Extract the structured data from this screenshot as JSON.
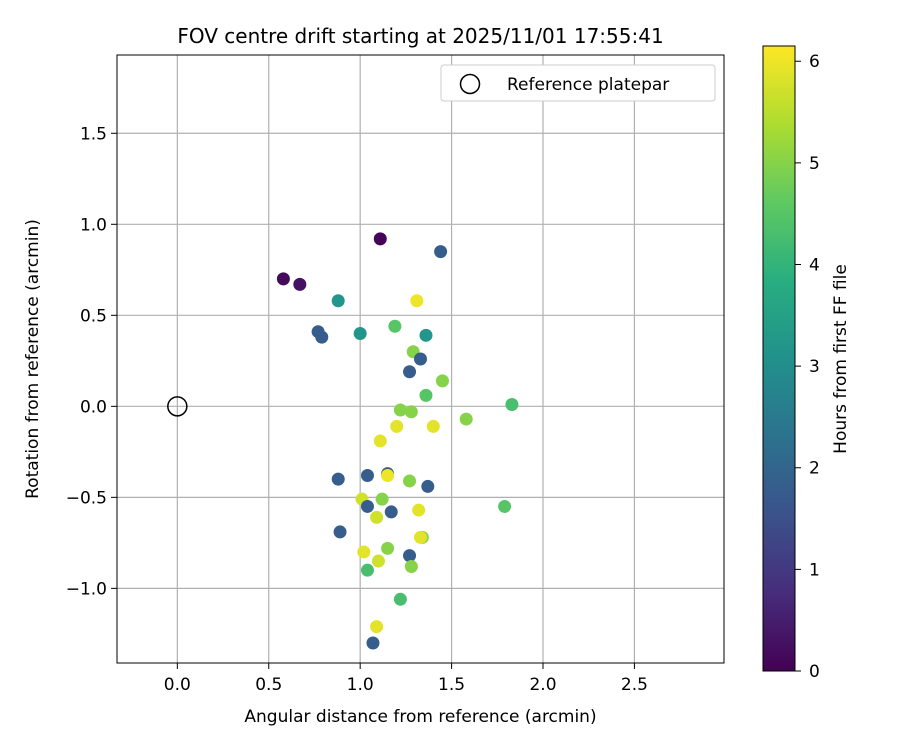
{
  "chart_data": {
    "type": "scatter",
    "title": "FOV centre drift starting at 2025/11/01 17:55:41",
    "xlabel": "Angular distance from reference (arcmin)",
    "ylabel": "Rotation from reference (arcmin)",
    "xlim": [
      -0.33,
      2.99
    ],
    "ylim": [
      -1.41,
      1.93
    ],
    "xticks": [
      0.0,
      0.5,
      1.0,
      1.5,
      2.0,
      2.5
    ],
    "xtick_labels": [
      "0.0",
      "0.5",
      "1.0",
      "1.5",
      "2.0",
      "2.5"
    ],
    "yticks": [
      -1.0,
      -0.5,
      0.0,
      0.5,
      1.0,
      1.5
    ],
    "ytick_labels": [
      "−1.0",
      "−0.5",
      "0.0",
      "0.5",
      "1.0",
      "1.5"
    ],
    "grid": true,
    "legend": {
      "position": "top-right",
      "entries": [
        {
          "label": "Reference platepar",
          "marker": "open-circle"
        }
      ]
    },
    "reference": {
      "x": 0.0,
      "y": 0.0
    },
    "colorbar": {
      "label": "Hours from first FF file",
      "colormap": "viridis",
      "range": [
        0,
        6.15
      ],
      "ticks": [
        0,
        1,
        2,
        3,
        4,
        5,
        6
      ],
      "tick_labels": [
        "0",
        "1",
        "2",
        "3",
        "4",
        "5",
        "6"
      ]
    },
    "points": [
      {
        "x": 1.11,
        "y": 0.92,
        "hours": 0.05
      },
      {
        "x": 0.58,
        "y": 0.7,
        "hours": 0.15
      },
      {
        "x": 0.67,
        "y": 0.67,
        "hours": 0.3
      },
      {
        "x": 1.44,
        "y": 0.85,
        "hours": 1.8
      },
      {
        "x": 0.77,
        "y": 0.41,
        "hours": 1.8
      },
      {
        "x": 0.79,
        "y": 0.38,
        "hours": 1.8
      },
      {
        "x": 0.88,
        "y": 0.58,
        "hours": 3.2
      },
      {
        "x": 1.0,
        "y": 0.4,
        "hours": 3.2
      },
      {
        "x": 1.36,
        "y": 0.39,
        "hours": 3.2
      },
      {
        "x": 1.19,
        "y": 0.44,
        "hours": 4.5
      },
      {
        "x": 1.31,
        "y": 0.58,
        "hours": 6.0
      },
      {
        "x": 1.29,
        "y": 0.3,
        "hours": 5.0
      },
      {
        "x": 1.33,
        "y": 0.26,
        "hours": 1.8
      },
      {
        "x": 1.27,
        "y": 0.19,
        "hours": 1.8
      },
      {
        "x": 1.45,
        "y": 0.14,
        "hours": 5.0
      },
      {
        "x": 1.36,
        "y": 0.06,
        "hours": 4.5
      },
      {
        "x": 1.22,
        "y": -0.02,
        "hours": 5.0
      },
      {
        "x": 1.28,
        "y": -0.03,
        "hours": 5.0
      },
      {
        "x": 1.58,
        "y": -0.07,
        "hours": 5.0
      },
      {
        "x": 1.83,
        "y": 0.01,
        "hours": 4.3
      },
      {
        "x": 1.2,
        "y": -0.11,
        "hours": 5.9
      },
      {
        "x": 1.4,
        "y": -0.11,
        "hours": 5.9
      },
      {
        "x": 1.11,
        "y": -0.19,
        "hours": 5.9
      },
      {
        "x": 0.88,
        "y": -0.4,
        "hours": 1.8
      },
      {
        "x": 1.04,
        "y": -0.38,
        "hours": 1.8
      },
      {
        "x": 1.15,
        "y": -0.37,
        "hours": 1.8
      },
      {
        "x": 1.15,
        "y": -0.38,
        "hours": 6.0
      },
      {
        "x": 1.27,
        "y": -0.41,
        "hours": 5.0
      },
      {
        "x": 1.37,
        "y": -0.44,
        "hours": 1.8
      },
      {
        "x": 1.01,
        "y": -0.51,
        "hours": 5.7
      },
      {
        "x": 1.12,
        "y": -0.51,
        "hours": 5.0
      },
      {
        "x": 1.04,
        "y": -0.55,
        "hours": 1.8
      },
      {
        "x": 1.17,
        "y": -0.58,
        "hours": 1.8
      },
      {
        "x": 1.09,
        "y": -0.61,
        "hours": 5.7
      },
      {
        "x": 1.32,
        "y": -0.57,
        "hours": 5.9
      },
      {
        "x": 1.79,
        "y": -0.55,
        "hours": 4.5
      },
      {
        "x": 0.89,
        "y": -0.69,
        "hours": 1.8
      },
      {
        "x": 1.34,
        "y": -0.72,
        "hours": 5.0
      },
      {
        "x": 1.33,
        "y": -0.72,
        "hours": 5.9
      },
      {
        "x": 1.15,
        "y": -0.78,
        "hours": 5.0
      },
      {
        "x": 1.02,
        "y": -0.8,
        "hours": 5.9
      },
      {
        "x": 1.27,
        "y": -0.82,
        "hours": 1.8
      },
      {
        "x": 1.1,
        "y": -0.85,
        "hours": 5.7
      },
      {
        "x": 1.28,
        "y": -0.88,
        "hours": 5.0
      },
      {
        "x": 1.04,
        "y": -0.9,
        "hours": 4.3
      },
      {
        "x": 1.22,
        "y": -1.06,
        "hours": 4.3
      },
      {
        "x": 1.09,
        "y": -1.21,
        "hours": 5.9
      },
      {
        "x": 1.07,
        "y": -1.3,
        "hours": 1.8
      }
    ]
  }
}
